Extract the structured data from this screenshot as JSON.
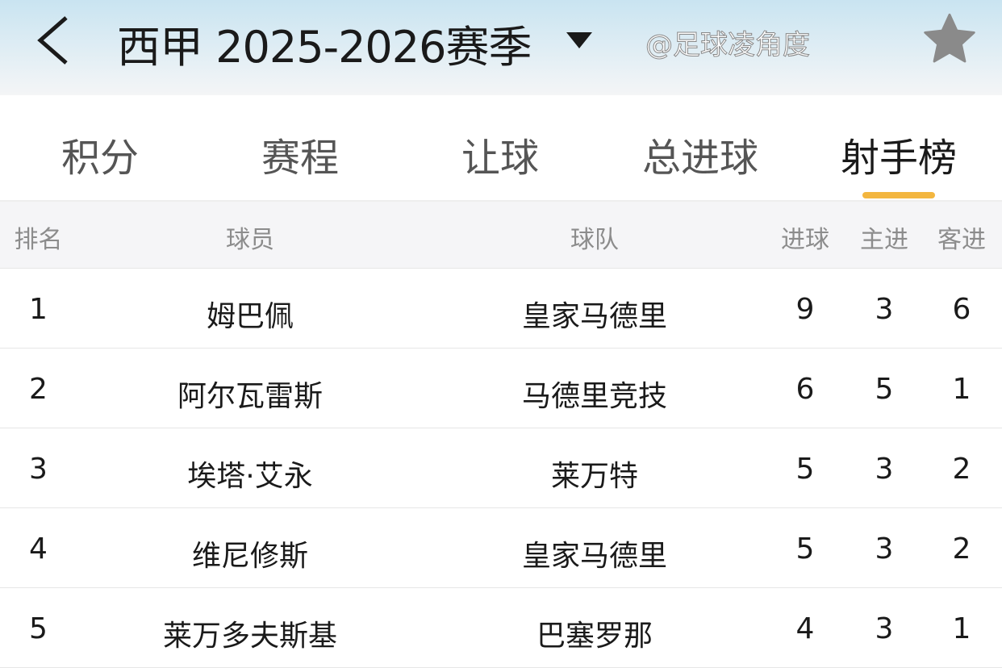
{
  "header": {
    "title": "西甲 2025-2026赛季",
    "back_icon": "chevron-left-icon",
    "favorite_icon": "star-icon"
  },
  "tabs": [
    {
      "label": "积分"
    },
    {
      "label": "赛程"
    },
    {
      "label": "让球"
    },
    {
      "label": "总进球"
    },
    {
      "label": "射手榜",
      "active": true
    }
  ],
  "accent": "#f3b63f",
  "table": {
    "columns": [
      "排名",
      "球员",
      "球队",
      "进球",
      "主进",
      "客进"
    ],
    "rows": [
      [
        "1",
        "姆巴佩",
        "皇家马德里",
        "9",
        "3",
        "6"
      ],
      [
        "2",
        "阿尔瓦雷斯",
        "马德里竞技",
        "6",
        "5",
        "1"
      ],
      [
        "3",
        "埃塔·艾永",
        "莱万特",
        "5",
        "3",
        "2"
      ],
      [
        "4",
        "维尼修斯",
        "皇家马德里",
        "5",
        "3",
        "2"
      ],
      [
        "5",
        "莱万多夫斯基",
        "巴塞罗那",
        "4",
        "3",
        "1"
      ]
    ]
  },
  "watermark": "@足球凌角度"
}
